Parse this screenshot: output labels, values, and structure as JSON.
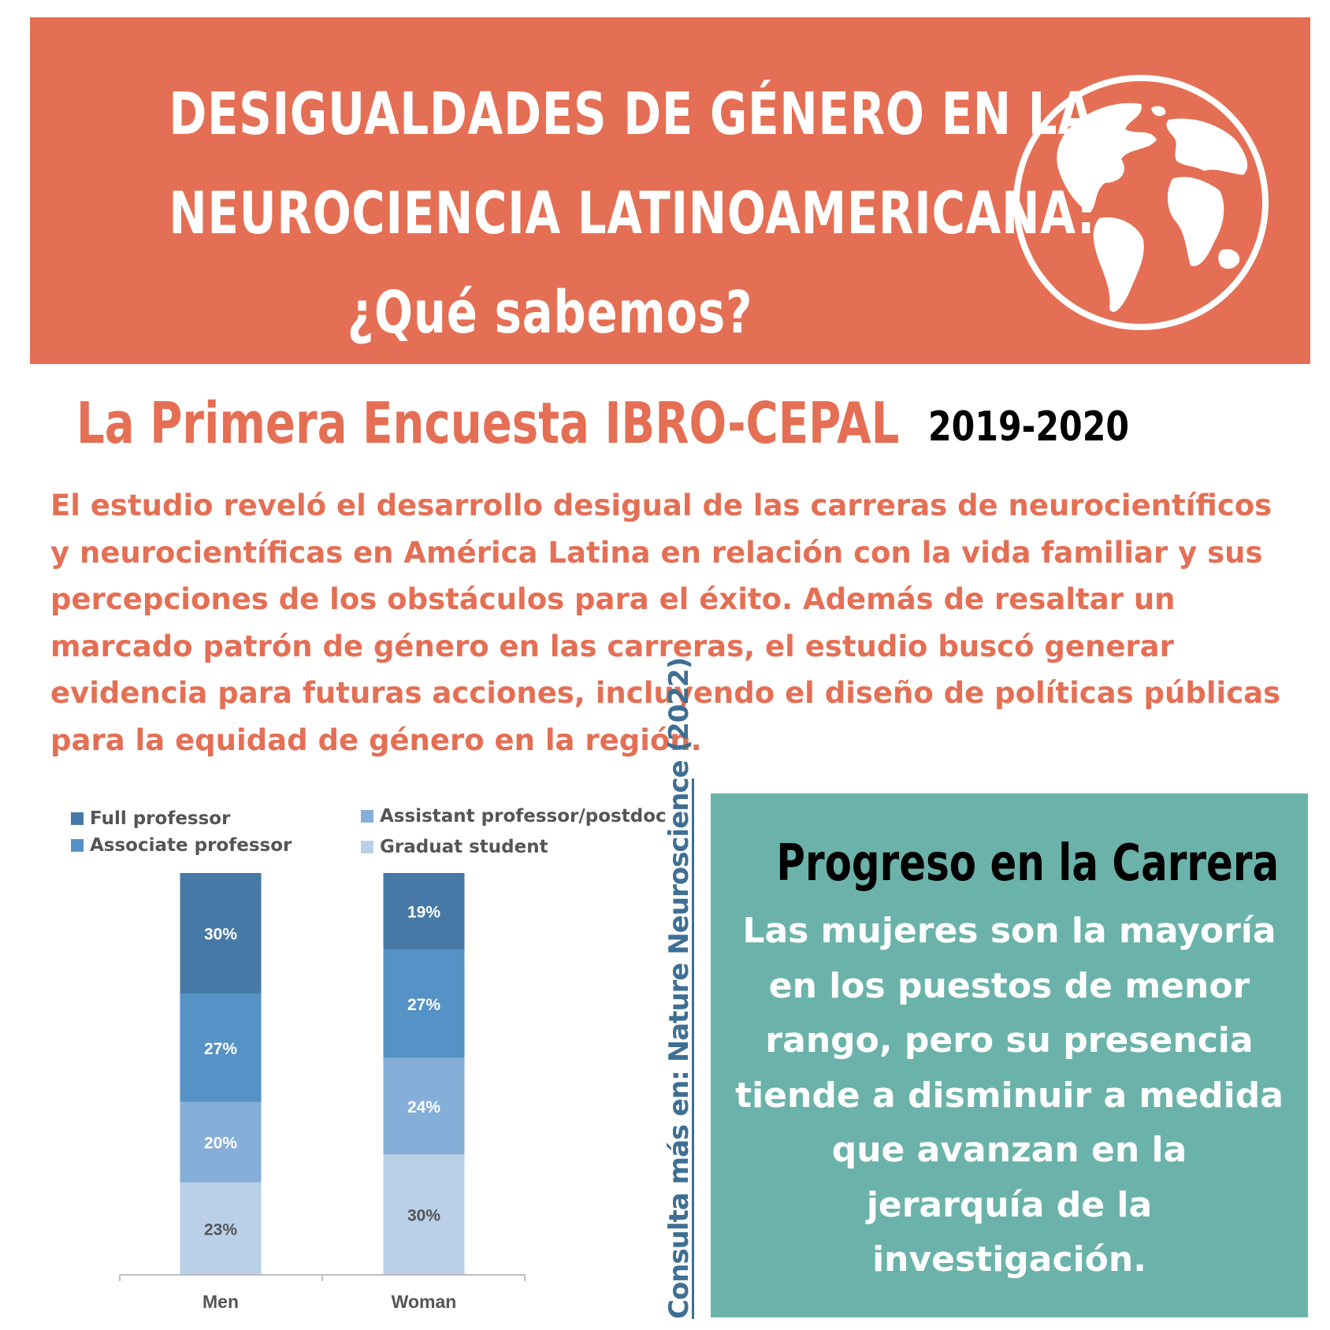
{
  "header": {
    "title_lines": [
      "DESIGUALDADES DE GÉNERO EN LA",
      "NEUROCIENCIA LATINOAMERICANA:",
      "¿Qué sabemos?"
    ],
    "icon": "globe-icon"
  },
  "survey": {
    "title": "La Primera Encuesta IBRO-CEPAL",
    "years": "2019-2020"
  },
  "intro_lines": [
    "El estudio reveló el desarrollo desigual de las carreras de neurocientíficos",
    "y neurocientíficas en América Latina en relación con la vida familiar y sus",
    "percepciones de los obstáculos para el éxito. Además de resaltar un",
    "marcado patrón de género en las carreras, el estudio buscó generar",
    "evidencia para futuras acciones, incluyendo el diseño de políticas públicas",
    "para la equidad de género en la región."
  ],
  "reference": "Consulta más en: Nature Neuroscience (2022)",
  "progress": {
    "title": "Progreso en la Carrera",
    "text_lines": [
      "Las mujeres son la mayoría",
      "en los puestos de menor",
      "rango, pero su presencia",
      "tiende a disminuir a medida",
      "que avanzan en la",
      "jerarquía de la",
      "investigación."
    ]
  },
  "colors": {
    "header": "#e46f54",
    "teal": "#6bb3aa",
    "reference": "#3e6f94"
  },
  "chart_data": {
    "type": "bar",
    "stacked": true,
    "categories": [
      "Men",
      "Woman"
    ],
    "series": [
      {
        "name": "Graduat student",
        "color": "#b9d0e8",
        "values": [
          23,
          30
        ],
        "labels": [
          "23%",
          "30%"
        ]
      },
      {
        "name": "Assistant professor/postdoc",
        "color": "#85aed8",
        "values": [
          20,
          24
        ],
        "labels": [
          "20%",
          "24%"
        ]
      },
      {
        "name": "Associate professor",
        "color": "#5592c6",
        "values": [
          27,
          27
        ],
        "labels": [
          "27%",
          "27%"
        ]
      },
      {
        "name": "Full professor",
        "color": "#4679a5",
        "values": [
          30,
          19
        ],
        "labels": [
          "30%",
          "19%"
        ]
      }
    ],
    "legend_order": [
      "Full professor",
      "Associate professor",
      "Assistant professor/postdoc",
      "Graduat student"
    ],
    "legend_position": "top",
    "ylim": [
      0,
      100
    ],
    "grid": false
  }
}
